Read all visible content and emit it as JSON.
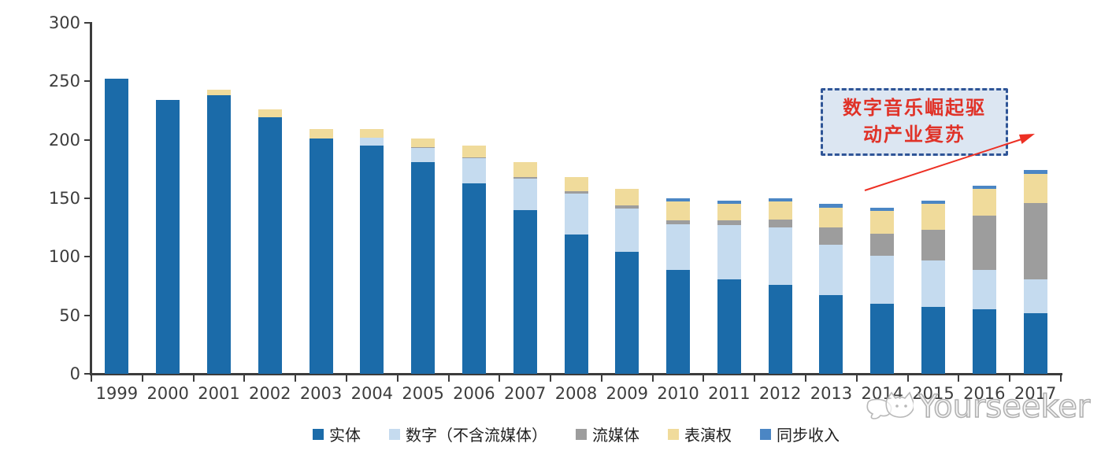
{
  "chart_data": {
    "type": "bar",
    "subtype": "stacked",
    "title": "",
    "xlabel": "",
    "ylabel": "",
    "ylim": [
      0,
      300
    ],
    "yticks": [
      0,
      50,
      100,
      150,
      200,
      250,
      300
    ],
    "grid": false,
    "legend_position": "bottom",
    "categories": [
      "1999",
      "2000",
      "2001",
      "2002",
      "2003",
      "2004",
      "2005",
      "2006",
      "2007",
      "2008",
      "2009",
      "2010",
      "2011",
      "2012",
      "2013",
      "2014",
      "2015",
      "2016",
      "2017"
    ],
    "series": [
      {
        "name": "实体",
        "color": "#1B6BA9",
        "values": [
          252,
          234,
          238,
          219,
          201,
          195,
          181,
          163,
          140,
          119,
          104,
          89,
          81,
          76,
          67,
          60,
          57,
          55,
          52
        ]
      },
      {
        "name": "数字（不含流媒体）",
        "color": "#C5DBEF",
        "values": [
          0,
          0,
          0,
          0,
          0,
          7,
          12,
          21,
          27,
          35,
          37,
          39,
          46,
          49,
          43,
          41,
          40,
          34,
          29
        ]
      },
      {
        "name": "流媒体",
        "color": "#9D9D9D",
        "values": [
          0,
          0,
          0,
          0,
          0,
          0,
          1,
          1,
          1,
          2,
          3,
          3,
          4,
          7,
          15,
          19,
          26,
          46,
          65
        ]
      },
      {
        "name": "表演权",
        "color": "#F0DB9B",
        "values": [
          0,
          0,
          5,
          7,
          8,
          7,
          7,
          10,
          13,
          12,
          14,
          16,
          14,
          15,
          17,
          19,
          22,
          23,
          25
        ]
      },
      {
        "name": "同步收入",
        "color": "#4B86C4",
        "values": [
          0,
          0,
          0,
          0,
          0,
          0,
          0,
          0,
          0,
          0,
          0,
          3,
          3,
          3,
          3,
          3,
          3,
          3,
          3
        ]
      }
    ]
  },
  "annotation": {
    "line1": "数字音乐崛起驱",
    "line2": "动产业复苏",
    "box_fill": "#DCE6F2",
    "box_border_color": "#2F5597",
    "text_color": "#E03228",
    "arrow_color": "#ED3024"
  },
  "watermark": {
    "text": "Yourseeker",
    "icon": "cat-logo-icon"
  },
  "axis": {
    "line_color": "#3C3C3C",
    "label_color": "#3D3D3D"
  }
}
